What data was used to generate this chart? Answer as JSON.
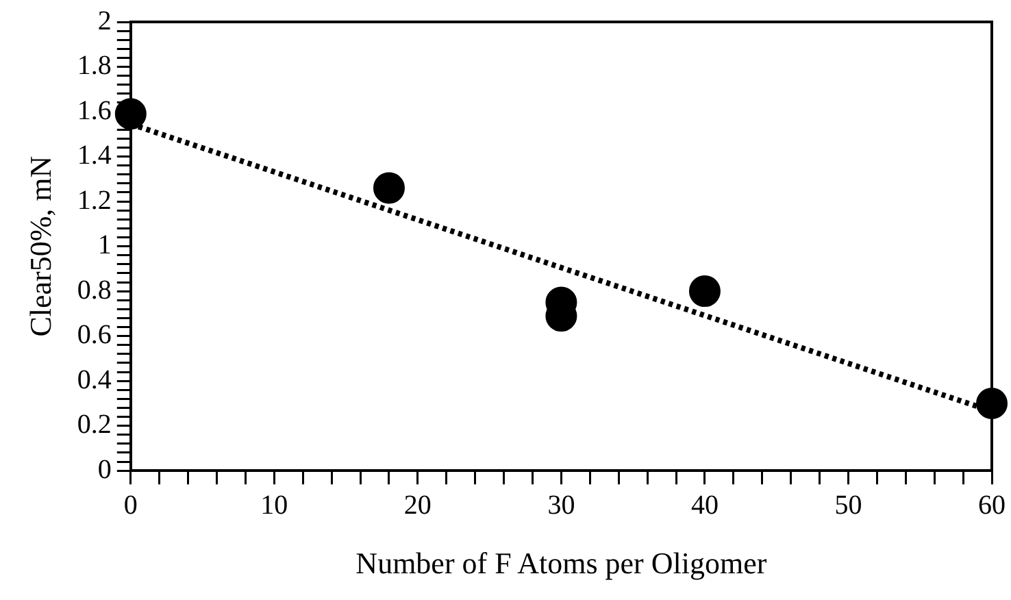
{
  "chart_data": {
    "type": "scatter",
    "xlabel": "Number of F Atoms per Oligomer",
    "ylabel": "Clear50%, mN",
    "series": [
      {
        "color": "#000000",
        "marker": "circle",
        "x": [
          0,
          18,
          30,
          30,
          40,
          60
        ],
        "values": [
          1.59,
          1.26,
          0.75,
          0.69,
          0.8,
          0.3
        ]
      },
      {
        "type": "line",
        "color": "#000000",
        "marker": "none",
        "line_style": "dotted",
        "x": [
          0,
          60
        ],
        "values": [
          1.545,
          0.265
        ]
      }
    ],
    "xlim": [
      0,
      60
    ],
    "xticks": [
      0,
      {
        "value": 2,
        "label": null
      },
      {
        "value": 4,
        "label": null
      },
      {
        "value": 6,
        "label": null
      },
      {
        "value": 8,
        "label": null
      },
      10,
      {
        "value": 12,
        "label": null
      },
      {
        "value": 14,
        "label": null
      },
      {
        "value": 16,
        "label": null
      },
      {
        "value": 18,
        "label": null
      },
      20,
      {
        "value": 22,
        "label": null
      },
      {
        "value": 24,
        "label": null
      },
      {
        "value": 26,
        "label": null
      },
      {
        "value": 28,
        "label": null
      },
      30,
      {
        "value": 32,
        "label": null
      },
      {
        "value": 34,
        "label": null
      },
      {
        "value": 36,
        "label": null
      },
      {
        "value": 38,
        "label": null
      },
      40,
      {
        "value": 42,
        "label": null
      },
      {
        "value": 44,
        "label": null
      },
      {
        "value": 46,
        "label": null
      },
      {
        "value": 48,
        "label": null
      },
      50,
      {
        "value": 52,
        "label": null
      },
      {
        "value": 54,
        "label": null
      },
      {
        "value": 56,
        "label": null
      },
      {
        "value": 58,
        "label": null
      },
      60
    ],
    "ylim": [
      0,
      2
    ],
    "yticks": [
      0,
      {
        "value": 0.04,
        "label": null
      },
      {
        "value": 0.08,
        "label": null
      },
      {
        "value": 0.12,
        "label": null
      },
      {
        "value": 0.16,
        "label": null
      },
      0.2,
      {
        "value": 0.24,
        "label": null
      },
      {
        "value": 0.28,
        "label": null
      },
      {
        "value": 0.32,
        "label": null
      },
      {
        "value": 0.36,
        "label": null
      },
      0.4,
      {
        "value": 0.44,
        "label": null
      },
      {
        "value": 0.48,
        "label": null
      },
      {
        "value": 0.52,
        "label": null
      },
      {
        "value": 0.56,
        "label": null
      },
      0.6,
      {
        "value": 0.64,
        "label": null
      },
      {
        "value": 0.68,
        "label": null
      },
      {
        "value": 0.72,
        "label": null
      },
      {
        "value": 0.76,
        "label": null
      },
      0.8,
      {
        "value": 0.84,
        "label": null
      },
      {
        "value": 0.88,
        "label": null
      },
      {
        "value": 0.92,
        "label": null
      },
      {
        "value": 0.96,
        "label": null
      },
      1,
      {
        "value": 1.04,
        "label": null
      },
      {
        "value": 1.08,
        "label": null
      },
      {
        "value": 1.12,
        "label": null
      },
      {
        "value": 1.16,
        "label": null
      },
      1.2,
      {
        "value": 1.24,
        "label": null
      },
      {
        "value": 1.28,
        "label": null
      },
      {
        "value": 1.32,
        "label": null
      },
      {
        "value": 1.36,
        "label": null
      },
      1.4,
      {
        "value": 1.44,
        "label": null
      },
      {
        "value": 1.48,
        "label": null
      },
      {
        "value": 1.52,
        "label": null
      },
      {
        "value": 1.56,
        "label": null
      },
      1.6,
      {
        "value": 1.64,
        "label": null
      },
      {
        "value": 1.68,
        "label": null
      },
      {
        "value": 1.72,
        "label": null
      },
      {
        "value": 1.76,
        "label": null
      },
      1.8,
      {
        "value": 1.84,
        "label": null
      },
      {
        "value": 1.88,
        "label": null
      },
      {
        "value": 1.92,
        "label": null
      },
      {
        "value": 1.96,
        "label": null
      },
      2
    ],
    "grid": false,
    "legend": false
  }
}
